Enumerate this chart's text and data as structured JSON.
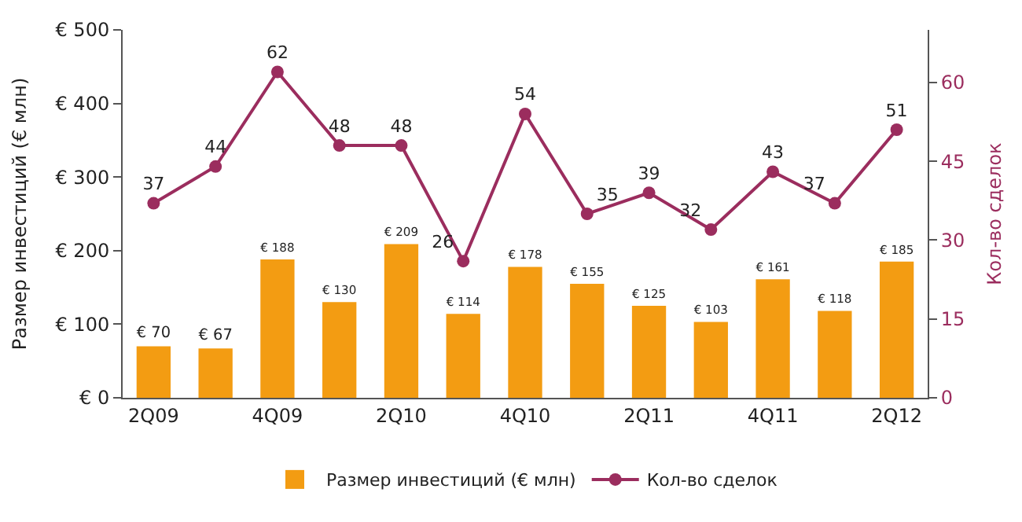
{
  "chart_data": {
    "type": "bar",
    "categories": [
      "2Q09",
      null,
      "4Q09",
      null,
      "2Q10",
      null,
      "4Q10",
      null,
      "2Q11",
      null,
      "4Q11",
      null,
      "2Q12"
    ],
    "ylabel": "Размер инвестиций (€ млн)",
    "y2label": "Кол-во сделок",
    "ylim": [
      0,
      500
    ],
    "yticks": [
      {
        "value": 0,
        "label": "€ 0"
      },
      {
        "value": 100,
        "label": "€ 100"
      },
      {
        "value": 200,
        "label": "€ 200"
      },
      {
        "value": 300,
        "label": "€ 300"
      },
      {
        "value": 400,
        "label": "€ 400"
      },
      {
        "value": 500,
        "label": "€ 500"
      }
    ],
    "y2lim": [
      0,
      70
    ],
    "y2ticks": [
      0,
      15,
      30,
      45,
      60
    ],
    "series": [
      {
        "name": "Размер инвестиций (€ млн)",
        "color": "#f39c12",
        "values": [
          70,
          67,
          188,
          130,
          209,
          114,
          178,
          155,
          125,
          103,
          161,
          118,
          185
        ],
        "value_labels": [
          "€ 70",
          "€ 67",
          "€ 188",
          "€ 130",
          "€ 209",
          "€ 114",
          "€ 178",
          "€ 155",
          "€ 125",
          "€ 103",
          "€ 161",
          "€ 118",
          "€ 185"
        ]
      },
      {
        "name": "Кол-во сделок",
        "type": "line",
        "axis": "y2",
        "color": "#9b2d5e",
        "marker": "circle",
        "values": [
          37,
          44,
          62,
          48,
          48,
          26,
          54,
          35,
          39,
          32,
          43,
          37,
          51
        ],
        "value_labels": [
          "37",
          "44",
          "62",
          "48",
          "48",
          "26",
          "54",
          "35",
          "39",
          "32",
          "43",
          "37",
          "51"
        ]
      }
    ],
    "legend": "bottom"
  }
}
